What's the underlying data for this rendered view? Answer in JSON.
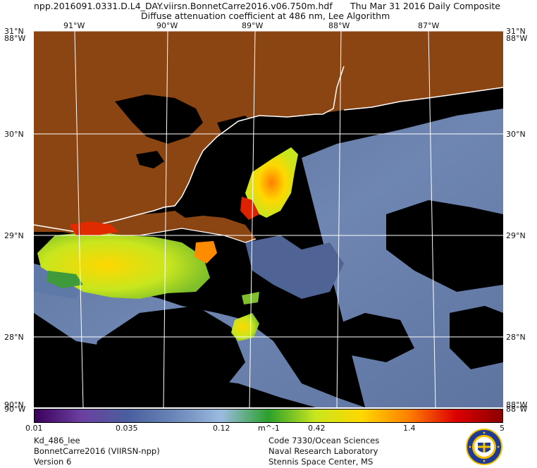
{
  "header": {
    "filename": "npp.2016091.0331.D.L4_DAY.viirsn.BonnetCarre2016.v06.750m.hdf",
    "date": "Thu Mar 31 2016 Daily Composite",
    "product": "Diffuse attenuation coefficient at 486 nm, Lee Algorithm"
  },
  "map": {
    "lat_labels": [
      "31°N",
      "30°N",
      "29°N",
      "28°N",
      "90°N"
    ],
    "lat_labels_right": [
      "31°N",
      "30°N",
      "29°N",
      "28°N",
      "88°W"
    ],
    "corner_overlap_labels": [
      "88°W",
      "88°W",
      "90°W",
      "88°W"
    ],
    "lon_labels": [
      "91°W",
      "90°W",
      "89°W",
      "88°W",
      "87°W"
    ],
    "land_color": "#8b4513",
    "background_color": "#000000"
  },
  "colorbar": {
    "ticks": [
      "0.01",
      "0.035",
      "0.12",
      "0.42",
      "1.4",
      "5"
    ],
    "unit": "m^-1",
    "colors": [
      "#3a005a",
      "#6b3fa0",
      "#4a5f9e",
      "#6b86b8",
      "#9bbbe0",
      "#2aa02a",
      "#c8e61e",
      "#ffd700",
      "#ff7f00",
      "#dd0000",
      "#8b0000"
    ]
  },
  "footer": {
    "left": [
      "Kd_486_lee",
      "BonnetCarre2016 (VIIRSN-npp)",
      "Version 6"
    ],
    "right": [
      "Code 7330/Ocean Sciences",
      "Naval Research Laboratory",
      "Stennis Space Center, MS"
    ]
  },
  "logo": {
    "icon": "naval-research-laboratory-seal-icon"
  }
}
